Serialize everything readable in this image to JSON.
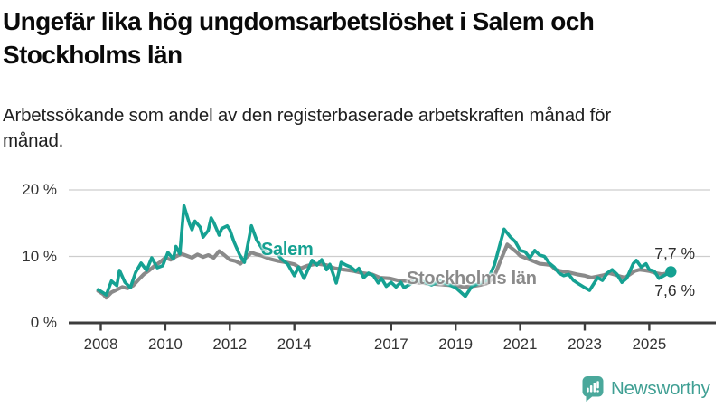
{
  "title": "Ungefär lika hög ungdomsarbetslöshet i Salem och Stockholms län",
  "subtitle": "Arbetssökande som andel av den registerbaserade arbetskraften månad för månad.",
  "logo": {
    "name": "Newsworthy",
    "icon": "speech-bubble-bar-chart-icon"
  },
  "colors": {
    "salem_line": "#15a192",
    "stockholm_line": "#8a8a8a",
    "grid": "#cdcdcd",
    "axis": "#3c3c3c",
    "title": "#0a0a0a",
    "subtitle": "#1f1f1f",
    "tick_label": "#333333",
    "end_label": "#2e2e2e",
    "logo": "#3f9f93",
    "background": "#ffffff"
  },
  "chart_data": {
    "type": "line",
    "title": "Ungefär lika hög ungdomsarbetslöshet i Salem och Stockholms län",
    "subtitle": "Arbetssökande som andel av den registerbaserade arbetskraften månad för månad.",
    "ylabel": "",
    "xlabel": "",
    "ylim": [
      0,
      20
    ],
    "grid": "horizontal",
    "y_ticks": [
      {
        "value": 0,
        "label": "0 %"
      },
      {
        "value": 10,
        "label": "10 %"
      },
      {
        "value": 20,
        "label": "20 %"
      }
    ],
    "x_ticks": [
      {
        "year": 2008,
        "label": "2008"
      },
      {
        "year": 2010,
        "label": "2010"
      },
      {
        "year": 2012,
        "label": "2012"
      },
      {
        "year": 2014,
        "label": "2014"
      },
      {
        "year": 2017,
        "label": "2017"
      },
      {
        "year": 2019,
        "label": "2019"
      },
      {
        "year": 2021,
        "label": "2021"
      },
      {
        "year": 2023,
        "label": "2023"
      },
      {
        "year": 2025,
        "label": "2025"
      }
    ],
    "points_format": "[year_decimal, percent]",
    "series": [
      {
        "name": "Salem",
        "color": "#15a192",
        "final_value_label": "7,7 %",
        "points": [
          [
            2007.92,
            5.0
          ],
          [
            2008.08,
            4.5
          ],
          [
            2008.17,
            4.2
          ],
          [
            2008.33,
            6.3
          ],
          [
            2008.5,
            5.6
          ],
          [
            2008.58,
            7.9
          ],
          [
            2008.75,
            6.1
          ],
          [
            2008.92,
            5.3
          ],
          [
            2009.08,
            7.6
          ],
          [
            2009.25,
            9.0
          ],
          [
            2009.42,
            7.9
          ],
          [
            2009.58,
            9.8
          ],
          [
            2009.75,
            8.3
          ],
          [
            2009.92,
            8.6
          ],
          [
            2010.08,
            10.6
          ],
          [
            2010.25,
            9.6
          ],
          [
            2010.33,
            11.5
          ],
          [
            2010.45,
            10.4
          ],
          [
            2010.58,
            17.6
          ],
          [
            2010.75,
            14.9
          ],
          [
            2010.83,
            14.0
          ],
          [
            2010.92,
            15.3
          ],
          [
            2011.08,
            14.4
          ],
          [
            2011.17,
            12.9
          ],
          [
            2011.33,
            13.9
          ],
          [
            2011.42,
            15.8
          ],
          [
            2011.5,
            15.1
          ],
          [
            2011.67,
            13.2
          ],
          [
            2011.75,
            14.2
          ],
          [
            2011.92,
            14.6
          ],
          [
            2012.0,
            14.0
          ],
          [
            2012.13,
            12.2
          ],
          [
            2012.3,
            10.3
          ],
          [
            2012.45,
            9.1
          ],
          [
            2012.67,
            14.6
          ],
          [
            2012.83,
            12.5
          ],
          [
            2013.0,
            11.2
          ],
          [
            2013.2,
            10.4
          ],
          [
            2013.4,
            10.8
          ],
          [
            2013.6,
            9.6
          ],
          [
            2013.8,
            8.8
          ],
          [
            2014.0,
            7.1
          ],
          [
            2014.13,
            8.4
          ],
          [
            2014.3,
            6.7
          ],
          [
            2014.55,
            9.4
          ],
          [
            2014.7,
            8.7
          ],
          [
            2014.85,
            9.5
          ],
          [
            2015.0,
            8.0
          ],
          [
            2015.1,
            8.8
          ],
          [
            2015.3,
            6.0
          ],
          [
            2015.45,
            9.1
          ],
          [
            2015.6,
            8.7
          ],
          [
            2015.75,
            8.4
          ],
          [
            2015.9,
            7.8
          ],
          [
            2016.0,
            8.2
          ],
          [
            2016.15,
            6.8
          ],
          [
            2016.3,
            7.5
          ],
          [
            2016.45,
            7.1
          ],
          [
            2016.6,
            6.0
          ],
          [
            2016.7,
            6.7
          ],
          [
            2016.85,
            5.5
          ],
          [
            2017.0,
            6.1
          ],
          [
            2017.15,
            5.4
          ],
          [
            2017.3,
            6.1
          ],
          [
            2017.4,
            5.3
          ],
          [
            2017.55,
            5.7
          ],
          [
            2017.75,
            6.4
          ],
          [
            2018.0,
            6.2
          ],
          [
            2018.25,
            5.7
          ],
          [
            2018.5,
            6.3
          ],
          [
            2018.75,
            5.8
          ],
          [
            2019.0,
            5.3
          ],
          [
            2019.3,
            4.0
          ],
          [
            2019.5,
            5.5
          ],
          [
            2019.75,
            6.0
          ],
          [
            2020.0,
            6.5
          ],
          [
            2020.2,
            8.7
          ],
          [
            2020.5,
            14.1
          ],
          [
            2020.7,
            12.9
          ],
          [
            2020.85,
            12.2
          ],
          [
            2021.0,
            10.9
          ],
          [
            2021.15,
            10.7
          ],
          [
            2021.3,
            9.8
          ],
          [
            2021.45,
            10.9
          ],
          [
            2021.6,
            10.2
          ],
          [
            2021.75,
            10.0
          ],
          [
            2021.9,
            9.0
          ],
          [
            2022.05,
            8.4
          ],
          [
            2022.2,
            7.5
          ],
          [
            2022.35,
            7.1
          ],
          [
            2022.5,
            7.3
          ],
          [
            2022.65,
            6.4
          ],
          [
            2022.8,
            5.9
          ],
          [
            2023.0,
            5.3
          ],
          [
            2023.15,
            4.9
          ],
          [
            2023.4,
            6.8
          ],
          [
            2023.55,
            6.4
          ],
          [
            2023.7,
            7.5
          ],
          [
            2023.85,
            8.0
          ],
          [
            2024.0,
            7.3
          ],
          [
            2024.15,
            6.1
          ],
          [
            2024.3,
            6.7
          ],
          [
            2024.5,
            8.9
          ],
          [
            2024.6,
            9.4
          ],
          [
            2024.75,
            8.4
          ],
          [
            2024.9,
            8.9
          ],
          [
            2025.0,
            8.0
          ],
          [
            2025.15,
            7.8
          ],
          [
            2025.3,
            6.7
          ],
          [
            2025.45,
            7.1
          ],
          [
            2025.67,
            7.7
          ]
        ]
      },
      {
        "name": "Stockholms län",
        "color": "#8a8a8a",
        "final_value_label": "7,6 %",
        "points": [
          [
            2007.92,
            4.8
          ],
          [
            2008.08,
            4.3
          ],
          [
            2008.17,
            3.8
          ],
          [
            2008.33,
            4.6
          ],
          [
            2008.5,
            5.0
          ],
          [
            2008.67,
            5.4
          ],
          [
            2008.83,
            5.2
          ],
          [
            2009.0,
            5.6
          ],
          [
            2009.17,
            6.5
          ],
          [
            2009.33,
            7.3
          ],
          [
            2009.5,
            7.9
          ],
          [
            2009.67,
            8.6
          ],
          [
            2009.83,
            9.1
          ],
          [
            2010.0,
            9.8
          ],
          [
            2010.17,
            9.5
          ],
          [
            2010.33,
            10.0
          ],
          [
            2010.5,
            10.4
          ],
          [
            2010.67,
            10.1
          ],
          [
            2010.83,
            9.8
          ],
          [
            2011.0,
            10.3
          ],
          [
            2011.17,
            9.9
          ],
          [
            2011.33,
            10.2
          ],
          [
            2011.5,
            9.8
          ],
          [
            2011.67,
            10.8
          ],
          [
            2011.83,
            10.2
          ],
          [
            2012.0,
            9.5
          ],
          [
            2012.17,
            9.3
          ],
          [
            2012.33,
            8.9
          ],
          [
            2012.5,
            9.8
          ],
          [
            2012.67,
            10.6
          ],
          [
            2012.83,
            10.3
          ],
          [
            2013.0,
            10.1
          ],
          [
            2013.25,
            9.6
          ],
          [
            2013.5,
            9.3
          ],
          [
            2013.75,
            9.1
          ],
          [
            2014.0,
            8.8
          ],
          [
            2014.2,
            8.2
          ],
          [
            2014.4,
            8.6
          ],
          [
            2014.7,
            8.9
          ],
          [
            2015.0,
            8.7
          ],
          [
            2015.25,
            8.2
          ],
          [
            2015.55,
            8.0
          ],
          [
            2015.85,
            7.8
          ],
          [
            2016.1,
            7.5
          ],
          [
            2016.4,
            7.3
          ],
          [
            2016.65,
            6.8
          ],
          [
            2016.95,
            6.7
          ],
          [
            2017.2,
            6.4
          ],
          [
            2017.5,
            6.3
          ],
          [
            2017.75,
            6.1
          ],
          [
            2018.0,
            6.0
          ],
          [
            2018.25,
            5.9
          ],
          [
            2018.5,
            5.8
          ],
          [
            2018.75,
            5.7
          ],
          [
            2019.0,
            5.6
          ],
          [
            2019.25,
            5.4
          ],
          [
            2019.5,
            5.5
          ],
          [
            2019.75,
            5.7
          ],
          [
            2020.0,
            6.0
          ],
          [
            2020.2,
            7.0
          ],
          [
            2020.4,
            9.5
          ],
          [
            2020.6,
            11.8
          ],
          [
            2020.75,
            11.2
          ],
          [
            2020.9,
            10.6
          ],
          [
            2021.0,
            10.1
          ],
          [
            2021.2,
            9.7
          ],
          [
            2021.4,
            9.3
          ],
          [
            2021.6,
            8.9
          ],
          [
            2021.8,
            8.8
          ],
          [
            2021.95,
            8.7
          ],
          [
            2022.1,
            8.0
          ],
          [
            2022.25,
            7.8
          ],
          [
            2022.5,
            7.6
          ],
          [
            2022.75,
            7.3
          ],
          [
            2023.0,
            7.1
          ],
          [
            2023.2,
            6.8
          ],
          [
            2023.4,
            7.0
          ],
          [
            2023.6,
            7.2
          ],
          [
            2023.75,
            7.5
          ],
          [
            2023.9,
            7.3
          ],
          [
            2024.1,
            7.0
          ],
          [
            2024.25,
            6.8
          ],
          [
            2024.4,
            7.3
          ],
          [
            2024.55,
            7.8
          ],
          [
            2024.7,
            8.0
          ],
          [
            2024.85,
            7.9
          ],
          [
            2025.0,
            7.8
          ],
          [
            2025.2,
            7.5
          ],
          [
            2025.4,
            7.3
          ],
          [
            2025.67,
            7.6
          ]
        ]
      }
    ]
  }
}
